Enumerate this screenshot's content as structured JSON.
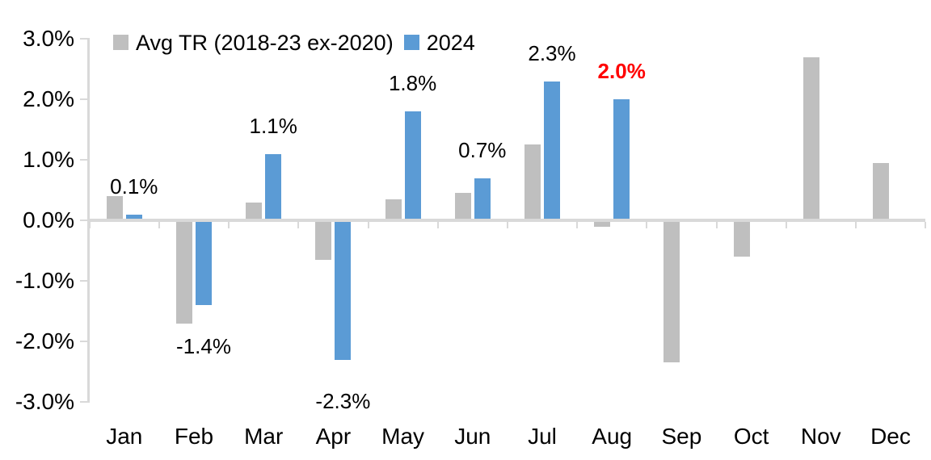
{
  "chart_data": {
    "type": "bar",
    "title": "",
    "xlabel": "",
    "ylabel": "",
    "categories": [
      "Jan",
      "Feb",
      "Mar",
      "Apr",
      "May",
      "Jun",
      "Jul",
      "Aug",
      "Sep",
      "Oct",
      "Nov",
      "Dec"
    ],
    "series": [
      {
        "name": "Avg TR (2018-23 ex-2020)",
        "color": "#BFBFBF",
        "values": [
          0.4,
          -1.7,
          0.3,
          -0.65,
          0.35,
          0.45,
          1.25,
          -0.1,
          -2.35,
          -0.6,
          2.7,
          0.95
        ]
      },
      {
        "name": "2024",
        "color": "#5B9BD5",
        "values": [
          0.1,
          -1.4,
          1.1,
          -2.3,
          1.8,
          0.7,
          2.3,
          2.0,
          null,
          null,
          null,
          null
        ]
      }
    ],
    "data_labels": [
      {
        "category": "Jan",
        "text": "0.1%",
        "color": "#000000",
        "bold": false
      },
      {
        "category": "Feb",
        "text": "-1.4%",
        "color": "#000000",
        "bold": false
      },
      {
        "category": "Mar",
        "text": "1.1%",
        "color": "#000000",
        "bold": false
      },
      {
        "category": "Apr",
        "text": "-2.3%",
        "color": "#000000",
        "bold": false
      },
      {
        "category": "May",
        "text": "1.8%",
        "color": "#000000",
        "bold": false
      },
      {
        "category": "Jun",
        "text": "0.7%",
        "color": "#000000",
        "bold": false
      },
      {
        "category": "Jul",
        "text": "2.3%",
        "color": "#000000",
        "bold": false
      },
      {
        "category": "Aug",
        "text": "2.0%",
        "color": "#FF0000",
        "bold": true
      }
    ],
    "y_axis": {
      "min": -3.0,
      "max": 3.0,
      "step": 1.0,
      "tick_labels": [
        "3.0%",
        "2.0%",
        "1.0%",
        "0.0%",
        "-1.0%",
        "-2.0%",
        "-3.0%"
      ]
    },
    "legend_position": "top",
    "grid": false,
    "axis_color": "#D9D9D9",
    "background_color": "#FFFFFF"
  }
}
